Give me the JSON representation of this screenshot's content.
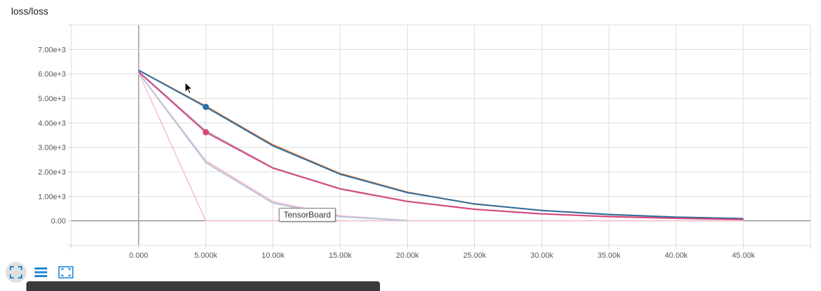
{
  "card": {
    "title": "loss/loss"
  },
  "tooltip": {
    "text": "TensorBoard"
  },
  "toolbar": {
    "buttons": [
      {
        "icon": "fit-domain-icon",
        "active": true
      },
      {
        "icon": "log-scale-list-icon",
        "active": false
      },
      {
        "icon": "expand-icon",
        "active": false
      }
    ]
  },
  "colors": {
    "blue": "#2c6fa3",
    "orange": "#e8772e",
    "pink": "#d9437a",
    "lightpink": "#f4bfd0",
    "lightblue": "#b9c9dd",
    "grid": "#dddddd"
  },
  "chart_data": {
    "type": "line",
    "title": "loss/loss",
    "xlabel": "",
    "ylabel": "",
    "xlim": [
      -5000,
      50000
    ],
    "ylim": [
      -1000,
      8000
    ],
    "x_ticks": [
      0,
      5000,
      10000,
      15000,
      20000,
      25000,
      30000,
      35000,
      40000,
      45000
    ],
    "x_tick_labels": [
      "0.000",
      "5.000k",
      "10.00k",
      "15.00k",
      "20.00k",
      "25.00k",
      "30.00k",
      "35.00k",
      "40.00k",
      "45.00k"
    ],
    "y_ticks": [
      0,
      1000,
      2000,
      3000,
      4000,
      5000,
      6000,
      7000
    ],
    "y_tick_labels": [
      "0.00",
      "1.00e+3",
      "2.00e+3",
      "3.00e+3",
      "4.00e+3",
      "5.00e+3",
      "6.00e+3",
      "7.00e+3"
    ],
    "grid": true,
    "series": [
      {
        "color": "#e8772e",
        "width": 2,
        "x": [
          0,
          5000,
          10000,
          15000,
          20000,
          25000,
          30000,
          35000,
          40000,
          45000
        ],
        "values": [
          6150,
          4680,
          3100,
          1930,
          1170,
          680,
          420,
          250,
          150,
          90
        ]
      },
      {
        "color": "#2c6fa3",
        "width": 2,
        "marker_index": 1,
        "x": [
          0,
          5000,
          10000,
          15000,
          20000,
          25000,
          30000,
          35000,
          40000,
          45000
        ],
        "values": [
          6150,
          4650,
          3060,
          1900,
          1150,
          690,
          420,
          260,
          150,
          90
        ]
      },
      {
        "color": "#b9c9dd",
        "width": 2,
        "x": [
          0,
          5000,
          10000,
          15000,
          20000,
          25000,
          30000,
          35000,
          40000,
          45000
        ],
        "values": [
          6100,
          3680,
          2170,
          1320,
          800,
          480,
          290,
          180,
          110,
          60
        ]
      },
      {
        "color": "#d9437a",
        "width": 2,
        "marker_index": 1,
        "x": [
          0,
          5000,
          10000,
          15000,
          20000,
          25000,
          30000,
          35000,
          40000,
          45000
        ],
        "values": [
          6080,
          3620,
          2150,
          1300,
          790,
          470,
          280,
          170,
          100,
          50
        ]
      },
      {
        "color": "#b9c9dd",
        "width": 2,
        "x": [
          0,
          5000,
          10000,
          15000,
          20000
        ],
        "values": [
          6050,
          2380,
          720,
          170,
          10
        ]
      },
      {
        "color": "#f4bfd0",
        "width": 2,
        "x": [
          0,
          5000,
          10000,
          15000,
          20000
        ],
        "values": [
          6050,
          2450,
          780,
          200,
          15
        ]
      },
      {
        "color": "#f4bfd0",
        "width": 1.5,
        "x": [
          0,
          5000,
          10000,
          45000
        ],
        "values": [
          6050,
          0,
          0,
          0
        ]
      }
    ]
  }
}
